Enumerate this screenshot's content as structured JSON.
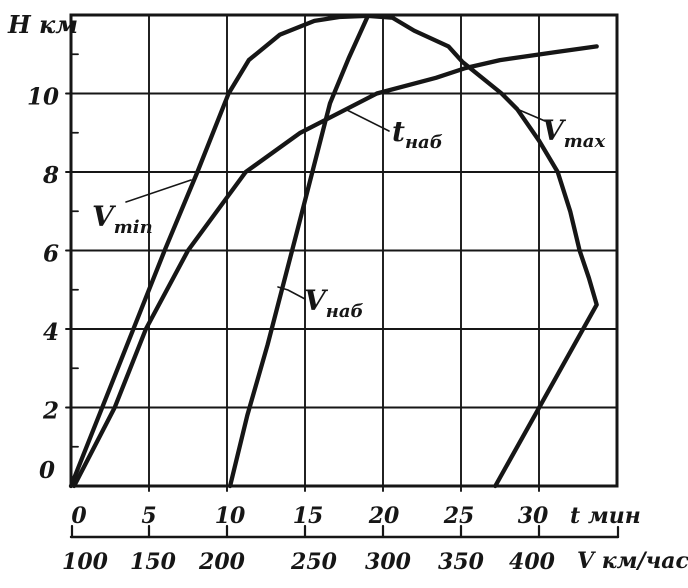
{
  "palette": {
    "ink": "#161616",
    "paper": "#ffffff"
  },
  "chart_data": {
    "type": "line",
    "title": "",
    "grid": "on",
    "legend": "none",
    "y_axis": {
      "label": "Н км",
      "tick_labels": [
        "10",
        "8",
        "6",
        "4",
        "2",
        "0"
      ],
      "tick_values": [
        10,
        8,
        6,
        4,
        2,
        0
      ],
      "minor_tick_values": [
        1,
        3,
        5,
        7,
        9,
        11
      ],
      "range": [
        0,
        12
      ]
    },
    "x_axes": [
      {
        "id": "t",
        "label": "t мин",
        "tick_labels": [
          "0",
          "5",
          "10",
          "15",
          "20",
          "25",
          "30"
        ],
        "tick_values": [
          0,
          5,
          10,
          15,
          20,
          25,
          30
        ],
        "tick_dx": [
          8,
          0,
          3,
          3,
          1,
          -2,
          -6
        ],
        "range": [
          0,
          35
        ]
      },
      {
        "id": "v",
        "label": "V км/час",
        "tick_labels": [
          "100",
          "150",
          "200",
          "250",
          "300",
          "350",
          "400"
        ],
        "tick_values": [
          100,
          150,
          200,
          250,
          300,
          350,
          400
        ],
        "tick_dx": [
          14,
          4,
          -5,
          9,
          5,
          0,
          -7
        ],
        "range": [
          100,
          450
        ]
      }
    ],
    "series": [
      {
        "id": "v-min",
        "name": "V_min",
        "x_axis": "v",
        "x_unit": "км/час",
        "points": [
          [
            100,
            0
          ],
          [
            120,
            2
          ],
          [
            140,
            4
          ],
          [
            160,
            6
          ],
          [
            181,
            8
          ],
          [
            201,
            10
          ],
          [
            214,
            10.85
          ],
          [
            234,
            11.5
          ],
          [
            256,
            11.85
          ],
          [
            272,
            11.95
          ],
          [
            290,
            11.98
          ]
        ]
      },
      {
        "id": "v-max",
        "name": "V_max",
        "x_axis": "v",
        "x_unit": "км/час",
        "points": [
          [
            290,
            11.98
          ],
          [
            306,
            11.93
          ],
          [
            320,
            11.6
          ],
          [
            342,
            11.2
          ],
          [
            351,
            10.8
          ],
          [
            376,
            10
          ],
          [
            386,
            9.6
          ],
          [
            400,
            8.8
          ],
          [
            412,
            8
          ],
          [
            420,
            7
          ],
          [
            426,
            6
          ],
          [
            432,
            5.3
          ],
          [
            437,
            4.62
          ],
          [
            372,
            0
          ]
        ]
      },
      {
        "id": "v-nab",
        "name": "V_наб",
        "x_axis": "v",
        "x_unit": "км/час",
        "points": [
          [
            202,
            0
          ],
          [
            213,
            1.8
          ],
          [
            226,
            3.6
          ],
          [
            245,
            6.5
          ],
          [
            266,
            9.75
          ],
          [
            278,
            10.9
          ],
          [
            290,
            11.95
          ]
        ]
      },
      {
        "id": "t-nab",
        "name": "t_наб",
        "x_axis": "t",
        "x_unit": "мин",
        "points": [
          [
            0.2,
            0
          ],
          [
            2.8,
            2
          ],
          [
            4.8,
            4
          ],
          [
            7.5,
            6
          ],
          [
            11.2,
            8
          ],
          [
            14.7,
            9
          ],
          [
            19.6,
            10
          ],
          [
            23.4,
            10.4
          ],
          [
            25.3,
            10.65
          ],
          [
            27.5,
            10.85
          ],
          [
            31,
            11.05
          ],
          [
            33.7,
            11.2
          ]
        ]
      }
    ],
    "annotations": [
      {
        "series": "v-min",
        "main": "V",
        "sub": "min",
        "x": 92,
        "y": 226,
        "leader": [
          [
            126,
            202
          ],
          [
            191,
            180
          ]
        ]
      },
      {
        "series": "t-nab",
        "main": "t",
        "sub": "наб",
        "x": 392,
        "y": 141,
        "leader": [
          [
            389,
            131
          ],
          [
            347,
            110
          ]
        ]
      },
      {
        "series": "v-max",
        "main": "V",
        "sub": "max",
        "x": 542,
        "y": 140,
        "leader": [
          [
            545,
            121
          ],
          [
            517,
            109
          ]
        ]
      },
      {
        "series": "v-nab",
        "main": "V",
        "sub": "наб",
        "x": 304,
        "y": 310,
        "leader": [
          [
            305,
            299
          ],
          [
            288,
            290
          ],
          [
            278,
            287
          ]
        ]
      }
    ]
  }
}
